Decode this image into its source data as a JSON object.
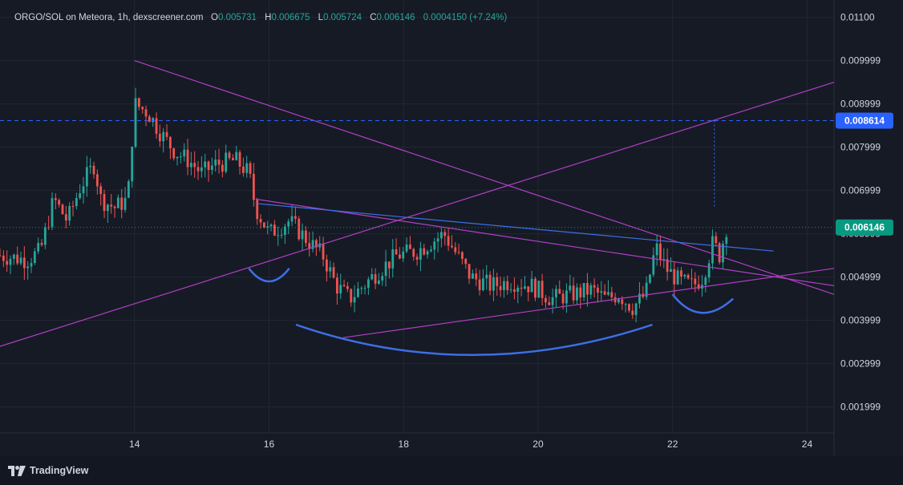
{
  "legend": {
    "symbol": "ORGO/SOL on Meteora, 1h, dexscreener.com",
    "o_key": "O",
    "o_val": "0.005731",
    "h_key": "H",
    "h_val": "0.006675",
    "l_key": "L",
    "l_val": "0.005724",
    "c_key": "C",
    "c_val": "0.006146",
    "change": "0.0004150 (+7.24%)"
  },
  "footer": {
    "brand": "TradingView"
  },
  "colors": {
    "bg": "#161a25",
    "up": "#26a69a",
    "down": "#ef5350",
    "purple": "#b03fc4",
    "blue_line": "#3d6fe6",
    "target_badge": "#2962ff",
    "price_badge": "#089981"
  },
  "chart_data": {
    "type": "candlestick",
    "x_tick_labels": [
      "14",
      "16",
      "18",
      "20",
      "22",
      "24"
    ],
    "x_ticks_day": [
      14,
      16,
      18,
      20,
      22,
      24
    ],
    "xlim_day": [
      12.0,
      24.4
    ],
    "y_tick_labels": [
      "0.01100",
      "0.009999",
      "0.008999",
      "0.007999",
      "0.006999",
      "0.005999",
      "0.004999",
      "0.003999",
      "0.002999",
      "0.001999"
    ],
    "y_ticks": [
      0.011,
      0.009999,
      0.008999,
      0.007999,
      0.006999,
      0.005999,
      0.004999,
      0.003999,
      0.002999,
      0.001999
    ],
    "ylim": [
      0.0014,
      0.0114
    ],
    "grid": true,
    "last_price": "0.006146",
    "target_price": "0.008614",
    "price_path": [
      [
        12.0,
        0.0055
      ],
      [
        12.4,
        0.0054
      ],
      [
        12.6,
        0.0056
      ],
      [
        12.8,
        0.0068
      ],
      [
        13.0,
        0.0063
      ],
      [
        13.2,
        0.0071
      ],
      [
        13.4,
        0.0076
      ],
      [
        13.5,
        0.0068
      ],
      [
        13.7,
        0.0066
      ],
      [
        13.9,
        0.0068
      ],
      [
        14.0,
        0.009
      ],
      [
        14.2,
        0.0088
      ],
      [
        14.4,
        0.0083
      ],
      [
        14.6,
        0.0079
      ],
      [
        14.8,
        0.0077
      ],
      [
        15.0,
        0.0074
      ],
      [
        15.2,
        0.0076
      ],
      [
        15.5,
        0.0077
      ],
      [
        15.7,
        0.0074
      ],
      [
        15.8,
        0.0066
      ],
      [
        16.0,
        0.006
      ],
      [
        16.3,
        0.0063
      ],
      [
        16.6,
        0.0058
      ],
      [
        16.8,
        0.0055
      ],
      [
        17.0,
        0.0048
      ],
      [
        17.2,
        0.0045
      ],
      [
        17.4,
        0.0048
      ],
      [
        17.6,
        0.0051
      ],
      [
        17.9,
        0.0055
      ],
      [
        18.2,
        0.0056
      ],
      [
        18.6,
        0.006
      ],
      [
        18.8,
        0.0055
      ],
      [
        19.0,
        0.005
      ],
      [
        19.3,
        0.0048
      ],
      [
        19.6,
        0.0049
      ],
      [
        19.9,
        0.0048
      ],
      [
        20.2,
        0.0045
      ],
      [
        20.5,
        0.0046
      ],
      [
        20.8,
        0.0047
      ],
      [
        21.0,
        0.0045
      ],
      [
        21.2,
        0.0046
      ],
      [
        21.4,
        0.0043
      ],
      [
        21.6,
        0.0046
      ],
      [
        21.75,
        0.0057
      ],
      [
        21.9,
        0.0052
      ],
      [
        22.1,
        0.0049
      ],
      [
        22.3,
        0.0048
      ],
      [
        22.45,
        0.005
      ],
      [
        22.6,
        0.0058
      ],
      [
        22.7,
        0.0055
      ],
      [
        22.8,
        0.00615
      ]
    ],
    "trend_lines_purple": [
      [
        [
          12.0,
          0.0034
        ],
        [
          24.4,
          0.0095
        ]
      ],
      [
        [
          14.0,
          0.01
        ],
        [
          24.4,
          0.0046
        ]
      ],
      [
        [
          15.8,
          0.0068
        ],
        [
          24.4,
          0.0048
        ]
      ],
      [
        [
          17.1,
          0.0036
        ],
        [
          24.4,
          0.0052
        ]
      ]
    ],
    "trend_line_blue": [
      [
        15.8,
        0.0067
      ],
      [
        23.5,
        0.0056
      ]
    ],
    "curves_blue": [
      [
        [
          15.7,
          0.0052
        ],
        [
          16.0,
          0.0046
        ],
        [
          16.3,
          0.0052
        ]
      ],
      [
        [
          16.4,
          0.0039
        ],
        [
          19.0,
          0.0025
        ],
        [
          21.7,
          0.0039
        ]
      ],
      [
        [
          22.0,
          0.0046
        ],
        [
          22.4,
          0.0038
        ],
        [
          22.9,
          0.0045
        ]
      ]
    ]
  }
}
